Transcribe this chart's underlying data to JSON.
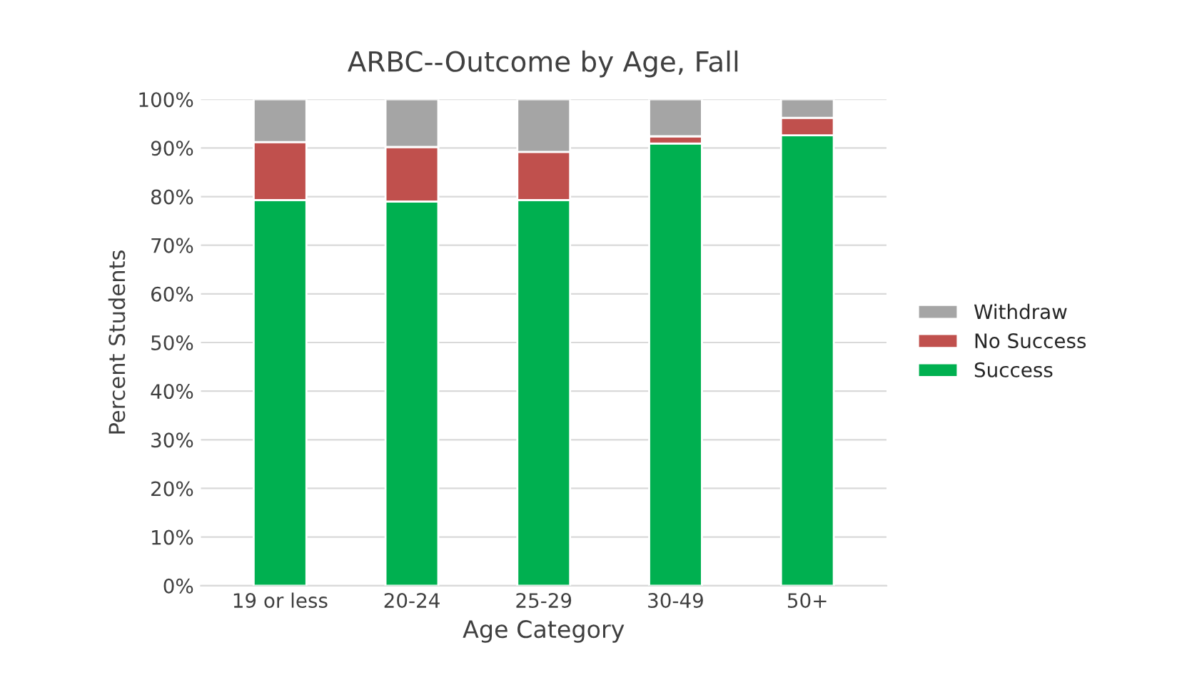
{
  "chart_data": {
    "type": "bar",
    "stacked": true,
    "title": "ARBC--Outcome by Age, Fall",
    "xlabel": "Age Category",
    "ylabel": "Percent Students",
    "categories": [
      "19 or less",
      "20-24",
      "25-29",
      "30-49",
      "50+"
    ],
    "series": [
      {
        "name": "Success",
        "color": "#00b050",
        "values": [
          79.3,
          79.0,
          79.3,
          90.9,
          92.6
        ]
      },
      {
        "name": "No Success",
        "color": "#c0504d",
        "values": [
          11.9,
          11.2,
          9.9,
          1.5,
          3.6
        ]
      },
      {
        "name": "Withdraw",
        "color": "#a5a5a5",
        "values": [
          8.8,
          9.8,
          10.8,
          7.6,
          3.8
        ]
      }
    ],
    "ylim": [
      0,
      100
    ],
    "yticks": [
      {
        "value": 0,
        "label": "0%"
      },
      {
        "value": 10,
        "label": "10%"
      },
      {
        "value": 20,
        "label": "20%"
      },
      {
        "value": 30,
        "label": "30%"
      },
      {
        "value": 40,
        "label": "40%"
      },
      {
        "value": 50,
        "label": "50%"
      },
      {
        "value": 60,
        "label": "60%"
      },
      {
        "value": 70,
        "label": "70%"
      },
      {
        "value": 80,
        "label": "80%"
      },
      {
        "value": 90,
        "label": "90%"
      },
      {
        "value": 100,
        "label": "100%"
      }
    ],
    "grid": "y",
    "legend": "right"
  }
}
